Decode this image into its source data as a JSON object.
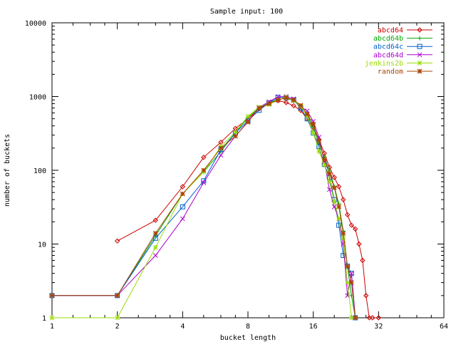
{
  "chart_data": {
    "type": "line",
    "title": "Sample input: 100",
    "xlabel": "bucket length",
    "ylabel": "number of buckets",
    "x_scale": "log2",
    "y_scale": "log10",
    "xlim": [
      1,
      64
    ],
    "ylim": [
      1,
      10000
    ],
    "x_ticks": [
      1,
      2,
      4,
      8,
      16,
      32,
      64
    ],
    "y_ticks": [
      1,
      10,
      100,
      1000,
      10000
    ],
    "x_tick_labels": [
      "1",
      "2",
      "4",
      "8",
      "16",
      "32",
      "64"
    ],
    "y_tick_labels": [
      "1",
      "10",
      "100",
      "1000",
      "10000"
    ],
    "legend_position": "top-right",
    "grid": false,
    "series": [
      {
        "name": "abcd64",
        "color": "#cc0000",
        "marker": "diamond",
        "points": [
          [
            2,
            11
          ],
          [
            3,
            21
          ],
          [
            4,
            60
          ],
          [
            5,
            150
          ],
          [
            6,
            240
          ],
          [
            7,
            370
          ],
          [
            8,
            500
          ],
          [
            9,
            680
          ],
          [
            10,
            800
          ],
          [
            11,
            880
          ],
          [
            12,
            830
          ],
          [
            13,
            750
          ],
          [
            14,
            650
          ],
          [
            15,
            500
          ],
          [
            16,
            380
          ],
          [
            17,
            260
          ],
          [
            18,
            170
          ],
          [
            19,
            110
          ],
          [
            20,
            80
          ],
          [
            21,
            60
          ],
          [
            22,
            40
          ],
          [
            23,
            25
          ],
          [
            24,
            18
          ],
          [
            25,
            16
          ],
          [
            26,
            10
          ],
          [
            27,
            6
          ],
          [
            28,
            2
          ],
          [
            29,
            1
          ],
          [
            30,
            1
          ],
          [
            32,
            1
          ]
        ]
      },
      {
        "name": "abcd64b",
        "color": "#00aa00",
        "marker": "plus",
        "points": [
          [
            1,
            2
          ],
          [
            2,
            2
          ],
          [
            3,
            13
          ],
          [
            4,
            48
          ],
          [
            5,
            95
          ],
          [
            6,
            180
          ],
          [
            7,
            320
          ],
          [
            8,
            520
          ],
          [
            9,
            700
          ],
          [
            10,
            820
          ],
          [
            11,
            910
          ],
          [
            12,
            950
          ],
          [
            13,
            880
          ],
          [
            14,
            720
          ],
          [
            15,
            560
          ],
          [
            16,
            380
          ],
          [
            17,
            230
          ],
          [
            18,
            150
          ],
          [
            19,
            100
          ],
          [
            20,
            60
          ],
          [
            21,
            35
          ],
          [
            22,
            15
          ],
          [
            23,
            5
          ],
          [
            24,
            2
          ],
          [
            25,
            1
          ]
        ]
      },
      {
        "name": "abcd64c",
        "color": "#0060cc",
        "marker": "square",
        "points": [
          [
            1,
            2
          ],
          [
            2,
            2
          ],
          [
            3,
            12
          ],
          [
            4,
            32
          ],
          [
            5,
            72
          ],
          [
            6,
            190
          ],
          [
            7,
            320
          ],
          [
            8,
            470
          ],
          [
            9,
            650
          ],
          [
            10,
            820
          ],
          [
            11,
            980
          ],
          [
            12,
            960
          ],
          [
            13,
            900
          ],
          [
            14,
            700
          ],
          [
            15,
            500
          ],
          [
            16,
            320
          ],
          [
            17,
            210
          ],
          [
            18,
            120
          ],
          [
            19,
            80
          ],
          [
            20,
            40
          ],
          [
            21,
            18
          ],
          [
            22,
            7
          ],
          [
            23,
            5
          ],
          [
            24,
            4
          ],
          [
            25,
            1
          ]
        ]
      },
      {
        "name": "abcd64d",
        "color": "#aa00cc",
        "marker": "x",
        "points": [
          [
            1,
            2
          ],
          [
            2,
            2
          ],
          [
            3,
            7
          ],
          [
            4,
            22
          ],
          [
            5,
            68
          ],
          [
            6,
            160
          ],
          [
            7,
            290
          ],
          [
            8,
            460
          ],
          [
            9,
            710
          ],
          [
            10,
            850
          ],
          [
            11,
            990
          ],
          [
            12,
            1000
          ],
          [
            13,
            930
          ],
          [
            14,
            720
          ],
          [
            15,
            640
          ],
          [
            16,
            460
          ],
          [
            17,
            280
          ],
          [
            18,
            130
          ],
          [
            19,
            55
          ],
          [
            20,
            32
          ],
          [
            21,
            22
          ],
          [
            22,
            10
          ],
          [
            23,
            2
          ],
          [
            24,
            4
          ],
          [
            25,
            1
          ]
        ]
      },
      {
        "name": "jenkins2b",
        "color": "#99dd00",
        "marker": "star",
        "points": [
          [
            1,
            1
          ],
          [
            2,
            1
          ],
          [
            3,
            9
          ],
          [
            4,
            48
          ],
          [
            5,
            95
          ],
          [
            6,
            210
          ],
          [
            7,
            330
          ],
          [
            8,
            540
          ],
          [
            9,
            720
          ],
          [
            10,
            780
          ],
          [
            11,
            900
          ],
          [
            12,
            980
          ],
          [
            13,
            880
          ],
          [
            14,
            740
          ],
          [
            15,
            540
          ],
          [
            16,
            320
          ],
          [
            17,
            180
          ],
          [
            18,
            120
          ],
          [
            19,
            70
          ],
          [
            20,
            38
          ],
          [
            21,
            22
          ],
          [
            22,
            12
          ],
          [
            23,
            3
          ],
          [
            24,
            1
          ]
        ]
      },
      {
        "name": "random",
        "color": "#aa4400",
        "marker": "asterisk",
        "points": [
          [
            1,
            2
          ],
          [
            2,
            2
          ],
          [
            3,
            14
          ],
          [
            4,
            48
          ],
          [
            5,
            100
          ],
          [
            6,
            200
          ],
          [
            7,
            290
          ],
          [
            8,
            450
          ],
          [
            9,
            700
          ],
          [
            10,
            800
          ],
          [
            11,
            900
          ],
          [
            12,
            960
          ],
          [
            13,
            900
          ],
          [
            14,
            760
          ],
          [
            15,
            580
          ],
          [
            16,
            420
          ],
          [
            17,
            250
          ],
          [
            18,
            140
          ],
          [
            19,
            90
          ],
          [
            20,
            58
          ],
          [
            21,
            32
          ],
          [
            22,
            14
          ],
          [
            23,
            5
          ],
          [
            24,
            3
          ],
          [
            25,
            1
          ]
        ]
      }
    ]
  }
}
